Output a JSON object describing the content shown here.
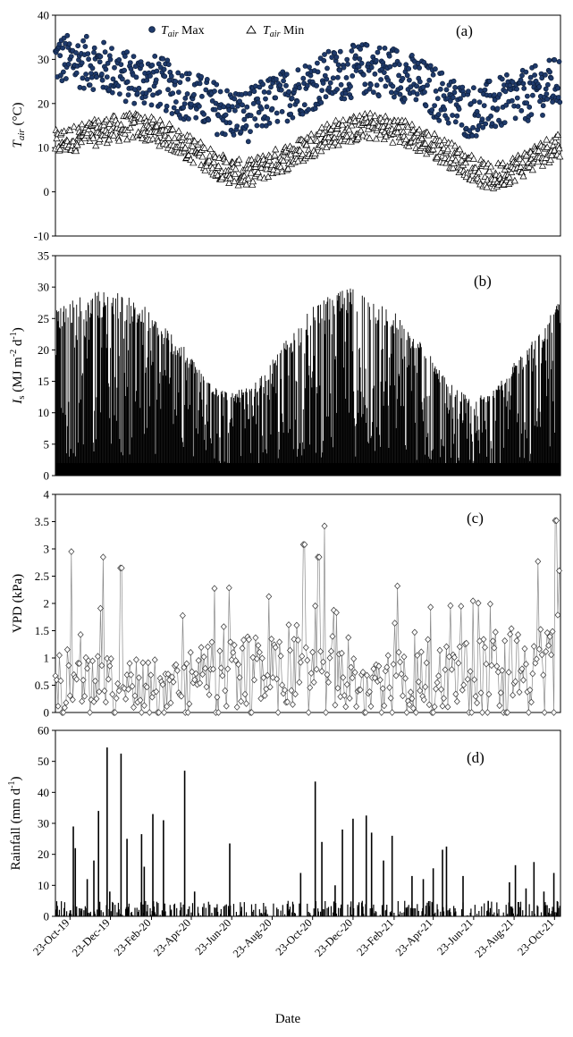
{
  "chart_data": [
    {
      "type": "scatter",
      "panel_label": "(a)",
      "ylabel_main": "T",
      "ylabel_sub": "air",
      "ylabel_unit": " (°C)",
      "ylim": [
        -10,
        40
      ],
      "yticks": [
        -10,
        0,
        10,
        20,
        30,
        40
      ],
      "xlim": [
        "2019-10-01",
        "2021-11-01"
      ],
      "grid": false,
      "legend_placement": "top-left",
      "series": [
        {
          "name": "T_air Max",
          "legend_main": "T",
          "legend_sub": "air",
          "legend_rest": " Max",
          "marker": "filled-circle",
          "color": "#1f3a6b",
          "keypoints": [
            [
              "2019-10-01",
              30
            ],
            [
              "2019-12-01",
              29
            ],
            [
              "2020-01-15",
              26
            ],
            [
              "2020-03-01",
              25
            ],
            [
              "2020-05-01",
              21
            ],
            [
              "2020-06-15",
              18
            ],
            [
              "2020-07-15",
              17
            ],
            [
              "2020-08-15",
              20
            ],
            [
              "2020-10-01",
              23
            ],
            [
              "2020-11-15",
              26
            ],
            [
              "2021-01-15",
              28
            ],
            [
              "2021-03-01",
              27
            ],
            [
              "2021-05-01",
              22
            ],
            [
              "2021-06-15",
              18
            ],
            [
              "2021-08-01",
              20
            ],
            [
              "2021-09-15",
              22
            ],
            [
              "2021-10-31",
              25
            ]
          ],
          "spread": 6
        },
        {
          "name": "T_air Min",
          "legend_main": "T",
          "legend_sub": "air",
          "legend_rest": " Min",
          "marker": "open-triangle",
          "color": "#000000",
          "keypoints": [
            [
              "2019-10-01",
              11
            ],
            [
              "2019-12-15",
              14
            ],
            [
              "2020-02-01",
              15
            ],
            [
              "2020-03-15",
              13
            ],
            [
              "2020-05-01",
              9
            ],
            [
              "2020-06-15",
              5
            ],
            [
              "2020-07-15",
              4
            ],
            [
              "2020-08-15",
              6
            ],
            [
              "2020-10-01",
              9
            ],
            [
              "2020-11-15",
              13
            ],
            [
              "2021-01-15",
              15
            ],
            [
              "2021-03-01",
              14
            ],
            [
              "2021-05-01",
              10
            ],
            [
              "2021-06-15",
              6
            ],
            [
              "2021-07-20",
              3
            ],
            [
              "2021-09-01",
              6
            ],
            [
              "2021-10-31",
              11
            ]
          ],
          "spread": 3
        }
      ]
    },
    {
      "type": "bar",
      "panel_label": "(b)",
      "ylabel_main": "I",
      "ylabel_sub": "s",
      "ylabel_unit": " (MJ m",
      "ylabel_tail": "-2",
      "ylabel_unit2": " d",
      "ylabel_tail2": "-1",
      "ylabel_close": ")",
      "ylim": [
        0,
        35
      ],
      "yticks": [
        0,
        5,
        10,
        15,
        20,
        25,
        30,
        35
      ],
      "xlim": [
        "2019-10-01",
        "2021-11-01"
      ],
      "grid": false,
      "envelope": [
        [
          "2019-10-01",
          27
        ],
        [
          "2019-12-20",
          30
        ],
        [
          "2020-02-15",
          27
        ],
        [
          "2020-04-01",
          22
        ],
        [
          "2020-05-15",
          16
        ],
        [
          "2020-06-21",
          13
        ],
        [
          "2020-08-01",
          15
        ],
        [
          "2020-09-15",
          22
        ],
        [
          "2020-11-01",
          28
        ],
        [
          "2020-12-21",
          30
        ],
        [
          "2021-02-15",
          27
        ],
        [
          "2021-04-01",
          22
        ],
        [
          "2021-05-15",
          15
        ],
        [
          "2021-06-21",
          12
        ],
        [
          "2021-08-01",
          15
        ],
        [
          "2021-09-15",
          21
        ],
        [
          "2021-10-31",
          28
        ]
      ]
    },
    {
      "type": "line",
      "panel_label": "(c)",
      "ylabel": "VPD (kPa)",
      "ylim": [
        0,
        4
      ],
      "yticks": [
        "0",
        "0.5",
        "1",
        "1.5",
        "2",
        "2.5",
        "3",
        "3.5",
        "4"
      ],
      "xlim": [
        "2019-10-01",
        "2021-11-01"
      ],
      "marker": "open-diamond",
      "grid": false,
      "typical": [
        [
          "2019-10-01",
          0.7
        ],
        [
          "2020-01-01",
          0.6
        ],
        [
          "2020-04-01",
          0.6
        ],
        [
          "2020-07-01",
          0.9
        ],
        [
          "2020-10-01",
          0.8
        ],
        [
          "2021-01-01",
          0.6
        ],
        [
          "2021-04-01",
          0.7
        ],
        [
          "2021-07-01",
          0.8
        ],
        [
          "2021-10-31",
          1.0
        ]
      ],
      "peaks": [
        [
          "2019-10-25",
          2.95
        ],
        [
          "2019-12-12",
          2.85
        ],
        [
          "2020-01-08",
          2.65
        ],
        [
          "2020-10-10",
          3.08
        ],
        [
          "2020-11-01",
          2.85
        ],
        [
          "2020-11-10",
          3.42
        ],
        [
          "2021-02-28",
          2.32
        ],
        [
          "2021-09-28",
          2.77
        ],
        [
          "2021-10-25",
          3.52
        ],
        [
          "2021-10-30",
          2.6
        ]
      ]
    },
    {
      "type": "bar",
      "panel_label": "(d)",
      "ylabel": "Rainfall (mm d",
      "ylabel_tail": "-1",
      "ylabel_close": ")",
      "xlabel": "Date",
      "ylim": [
        0,
        60
      ],
      "yticks": [
        0,
        10,
        20,
        30,
        40,
        50,
        60
      ],
      "xlim": [
        "2019-10-01",
        "2021-11-01"
      ],
      "x_tick_labels": [
        "23-Oct-19",
        "23-Dec-19",
        "23-Feb-20",
        "23-Apr-20",
        "23-Jun-20",
        "23-Aug-20",
        "23-Oct-20",
        "23-Dec-20",
        "23-Feb-21",
        "23-Apr-21",
        "23-Jun-21",
        "23-Aug-21",
        "23-Oct-21"
      ],
      "x_tick_dates": [
        "2019-10-23",
        "2019-12-23",
        "2020-02-23",
        "2020-04-23",
        "2020-06-23",
        "2020-08-23",
        "2020-10-23",
        "2020-12-23",
        "2021-02-23",
        "2021-04-23",
        "2021-06-23",
        "2021-08-23",
        "2021-10-23"
      ],
      "grid": false,
      "major_events": [
        [
          "2019-10-28",
          29
        ],
        [
          "2019-10-31",
          22
        ],
        [
          "2019-11-18",
          12
        ],
        [
          "2019-11-28",
          18
        ],
        [
          "2019-12-05",
          34
        ],
        [
          "2019-12-18",
          54.5
        ],
        [
          "2019-12-22",
          8
        ],
        [
          "2020-01-08",
          52.5
        ],
        [
          "2020-01-17",
          25
        ],
        [
          "2020-02-08",
          26.5
        ],
        [
          "2020-02-12",
          16
        ],
        [
          "2020-02-25",
          33
        ],
        [
          "2020-03-12",
          31
        ],
        [
          "2020-04-13",
          47
        ],
        [
          "2020-04-28",
          8
        ],
        [
          "2020-06-20",
          23.5
        ],
        [
          "2020-09-15",
          4
        ],
        [
          "2020-10-05",
          14
        ],
        [
          "2020-10-27",
          43.5
        ],
        [
          "2020-11-06",
          24
        ],
        [
          "2020-11-26",
          10
        ],
        [
          "2020-12-07",
          28
        ],
        [
          "2020-12-23",
          31.5
        ],
        [
          "2021-01-12",
          32.5
        ],
        [
          "2021-01-20",
          27
        ],
        [
          "2021-02-07",
          18
        ],
        [
          "2021-02-20",
          26
        ],
        [
          "2021-03-22",
          13
        ],
        [
          "2021-04-08",
          12
        ],
        [
          "2021-04-23",
          15.5
        ],
        [
          "2021-05-07",
          21.5
        ],
        [
          "2021-05-13",
          22.5
        ],
        [
          "2021-06-07",
          13
        ],
        [
          "2021-07-15",
          5
        ],
        [
          "2021-08-16",
          11
        ],
        [
          "2021-08-25",
          16.5
        ],
        [
          "2021-09-10",
          9
        ],
        [
          "2021-09-22",
          17.5
        ],
        [
          "2021-10-07",
          8
        ],
        [
          "2021-10-22",
          14
        ]
      ]
    }
  ]
}
